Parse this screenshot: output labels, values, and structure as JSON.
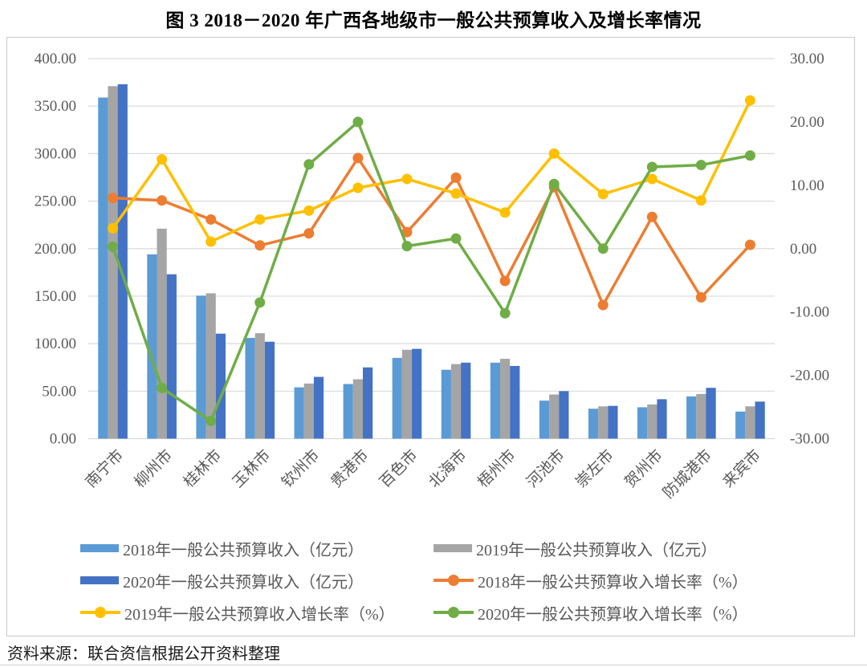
{
  "title": "图 3  2018－2020 年广西各地级市一般公共预算收入及增长率情况",
  "source_note": "资料来源：联合资信根据公开资料整理",
  "colors": {
    "bar_2018": "#5B9BD5",
    "bar_2019": "#A5A5A5",
    "bar_2020": "#4472C4",
    "line_2018": "#ED7D31",
    "line_2019": "#FFC000",
    "line_2020": "#70AD47",
    "grid": "#d9d9d9",
    "axis_text": "#595959"
  },
  "chart_data": {
    "type": "bar+line",
    "title": "图 3  2018－2020 年广西各地级市一般公共预算收入及增长率情况",
    "categories": [
      "南宁市",
      "柳州市",
      "桂林市",
      "玉林市",
      "钦州市",
      "贵港市",
      "百色市",
      "北海市",
      "梧州市",
      "河池市",
      "崇左市",
      "贺州市",
      "防城港市",
      "来宾市"
    ],
    "bar_series": [
      {
        "name": "2018年一般公共预算收入（亿元）",
        "color": "#5B9BD5",
        "values": [
          359,
          194,
          150.5,
          106,
          54,
          57.5,
          85,
          72.5,
          80,
          40,
          31.5,
          33,
          44.5,
          28.5
        ]
      },
      {
        "name": "2019年一般公共预算收入（亿元）",
        "color": "#A5A5A5",
        "values": [
          371,
          221,
          153,
          111,
          58,
          62.5,
          93.5,
          78.5,
          84,
          46.5,
          34,
          36,
          47,
          34
        ]
      },
      {
        "name": "2020年一般公共预算收入（亿元）",
        "color": "#4472C4",
        "values": [
          373,
          173,
          110.5,
          102,
          65,
          75,
          94.5,
          80,
          76.5,
          50,
          34.5,
          41.5,
          53.5,
          39
        ]
      }
    ],
    "line_series": [
      {
        "name": "2018年一般公共预算收入增长率（%）",
        "color": "#ED7D31",
        "values": [
          8.0,
          7.6,
          4.6,
          0.5,
          2.4,
          14.3,
          2.6,
          11.2,
          -5.1,
          9.7,
          -8.9,
          5.0,
          -7.7,
          0.6
        ]
      },
      {
        "name": "2019年一般公共预算收入增长率（%）",
        "color": "#FFC000",
        "values": [
          3.2,
          14.1,
          1.1,
          4.6,
          6.0,
          9.6,
          11.0,
          8.7,
          5.7,
          15.0,
          8.6,
          11.0,
          7.6,
          23.4
        ]
      },
      {
        "name": "2020年一般公共预算收入增长率（%）",
        "color": "#70AD47",
        "values": [
          0.3,
          -22.0,
          -27.2,
          -8.5,
          13.3,
          20.0,
          0.4,
          1.6,
          -10.2,
          10.2,
          0.0,
          12.9,
          13.2,
          14.7
        ]
      }
    ],
    "left_axis": {
      "min": 0,
      "max": 400,
      "ticks": [
        "400.00",
        "350.00",
        "300.00",
        "250.00",
        "200.00",
        "150.00",
        "100.00",
        "50.00",
        "0.00"
      ]
    },
    "right_axis": {
      "min": -30,
      "max": 30,
      "ticks": [
        "30.00",
        "20.00",
        "10.00",
        "0.00",
        "-10.00",
        "-20.00",
        "-30.00"
      ]
    },
    "grid": true,
    "legend_position": "bottom"
  },
  "legend": {
    "items": [
      {
        "label": "2018年一般公共预算收入（亿元）",
        "type": "bar",
        "color": "#5B9BD5"
      },
      {
        "label": "2019年一般公共预算收入（亿元）",
        "type": "bar",
        "color": "#A5A5A5"
      },
      {
        "label": "2020年一般公共预算收入（亿元）",
        "type": "bar",
        "color": "#4472C4"
      },
      {
        "label": "2018年一般公共预算收入增长率（%）",
        "type": "line",
        "color": "#ED7D31"
      },
      {
        "label": "2019年一般公共预算收入增长率（%）",
        "type": "line",
        "color": "#FFC000"
      },
      {
        "label": "2020年一般公共预算收入增长率（%）",
        "type": "line",
        "color": "#70AD47"
      }
    ]
  }
}
